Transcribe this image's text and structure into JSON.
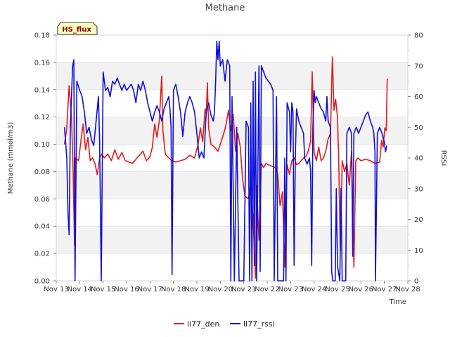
{
  "chart_data": {
    "type": "line",
    "title": "Methane",
    "badge": "HS_flux",
    "xlabel": "Time",
    "ylabel": "Methane (mmol/m3)",
    "y2label": "RSSI",
    "xlim": [
      13,
      28
    ],
    "ylim": [
      0,
      0.18
    ],
    "y2lim": [
      0,
      80
    ],
    "x_ticks": [
      13,
      14,
      15,
      16,
      17,
      18,
      19,
      20,
      21,
      22,
      23,
      24,
      25,
      26,
      27,
      28
    ],
    "x_tick_labels": [
      "Nov 13",
      "Nov 14",
      "Nov 15",
      "Nov 16",
      "Nov 17",
      "Nov 18",
      "Nov 19",
      "Nov 20",
      "Nov 21",
      "Nov 22",
      "Nov 23",
      "Nov 24",
      "Nov 25",
      "Nov 26",
      "Nov 27",
      "Nov 28"
    ],
    "y_ticks": [
      0.0,
      0.02,
      0.04,
      0.06,
      0.08,
      0.1,
      0.12,
      0.14,
      0.16,
      0.18
    ],
    "y_tick_labels": [
      "0.00",
      "0.02",
      "0.04",
      "0.06",
      "0.08",
      "0.10",
      "0.12",
      "0.14",
      "0.16",
      "0.18"
    ],
    "y2_ticks": [
      0,
      10,
      20,
      30,
      40,
      50,
      60,
      70,
      80
    ],
    "y2_tick_labels": [
      "0",
      "10",
      "20",
      "30",
      "40",
      "50",
      "60",
      "70",
      "80"
    ],
    "grid": true,
    "legend_position": "bottom-center",
    "series": [
      {
        "name": "li77_den",
        "axis": "left",
        "color": "#e41a1c",
        "points": [
          [
            13.35,
            0.1
          ],
          [
            13.45,
            0.112
          ],
          [
            13.55,
            0.143
          ],
          [
            13.65,
            0.12
          ],
          [
            13.72,
            0.08
          ],
          [
            13.78,
            0.026
          ],
          [
            13.82,
            0.09
          ],
          [
            13.95,
            0.088
          ],
          [
            14.05,
            0.102
          ],
          [
            14.15,
            0.115
          ],
          [
            14.25,
            0.096
          ],
          [
            14.35,
            0.105
          ],
          [
            14.45,
            0.088
          ],
          [
            14.55,
            0.09
          ],
          [
            14.65,
            0.086
          ],
          [
            14.75,
            0.078
          ],
          [
            14.85,
            0.09
          ],
          [
            14.95,
            0.093
          ],
          [
            15.05,
            0.09
          ],
          [
            15.2,
            0.093
          ],
          [
            15.35,
            0.088
          ],
          [
            15.5,
            0.096
          ],
          [
            15.65,
            0.089
          ],
          [
            15.8,
            0.094
          ],
          [
            15.95,
            0.088
          ],
          [
            16.1,
            0.087
          ],
          [
            16.25,
            0.086
          ],
          [
            16.4,
            0.089
          ],
          [
            16.55,
            0.092
          ],
          [
            16.7,
            0.095
          ],
          [
            16.85,
            0.088
          ],
          [
            17.0,
            0.091
          ],
          [
            17.1,
            0.098
          ],
          [
            17.2,
            0.115
          ],
          [
            17.3,
            0.105
          ],
          [
            17.4,
            0.118
          ],
          [
            17.5,
            0.15
          ],
          [
            17.55,
            0.11
          ],
          [
            17.65,
            0.093
          ],
          [
            17.8,
            0.09
          ],
          [
            17.95,
            0.088
          ],
          [
            18.1,
            0.087
          ],
          [
            18.3,
            0.088
          ],
          [
            18.5,
            0.089
          ],
          [
            18.7,
            0.092
          ],
          [
            18.9,
            0.09
          ],
          [
            19.05,
            0.1
          ],
          [
            19.15,
            0.112
          ],
          [
            19.25,
            0.102
          ],
          [
            19.35,
            0.126
          ],
          [
            19.4,
            0.122
          ],
          [
            19.45,
            0.145
          ],
          [
            19.5,
            0.112
          ],
          [
            19.6,
            0.1
          ],
          [
            19.75,
            0.098
          ],
          [
            19.9,
            0.095
          ],
          [
            20.0,
            0.1
          ],
          [
            20.15,
            0.108
          ],
          [
            20.25,
            0.115
          ],
          [
            20.35,
            0.125
          ],
          [
            20.45,
            0.11
          ],
          [
            20.55,
            0.122
          ],
          [
            20.65,
            0.095
          ],
          [
            20.75,
            0.108
          ],
          [
            20.85,
            0.098
          ],
          [
            20.95,
            0.075
          ],
          [
            21.05,
            0.062
          ],
          [
            21.2,
            0.06
          ],
          [
            21.3,
            0.072
          ],
          [
            21.4,
            0.045
          ],
          [
            21.5,
            0.002
          ],
          [
            21.55,
            0.07
          ],
          [
            21.65,
            0.03
          ],
          [
            21.75,
            0.086
          ],
          [
            21.85,
            0.083
          ],
          [
            21.95,
            0.086
          ],
          [
            22.05,
            0.085
          ],
          [
            22.2,
            0.084
          ],
          [
            22.35,
            0.083
          ],
          [
            22.45,
            0.078
          ],
          [
            22.55,
            0.055
          ],
          [
            22.65,
            0.065
          ],
          [
            22.75,
            0.01
          ],
          [
            22.85,
            0.085
          ],
          [
            22.95,
            0.078
          ],
          [
            23.05,
            0.088
          ],
          [
            23.15,
            0.09
          ],
          [
            23.25,
            0.085
          ],
          [
            23.35,
            0.086
          ],
          [
            23.45,
            0.088
          ],
          [
            23.55,
            0.09
          ],
          [
            23.65,
            0.091
          ],
          [
            23.75,
            0.095
          ],
          [
            23.85,
            0.102
          ],
          [
            23.92,
            0.153
          ],
          [
            24.0,
            0.094
          ],
          [
            24.1,
            0.088
          ],
          [
            24.2,
            0.098
          ],
          [
            24.3,
            0.088
          ],
          [
            24.4,
            0.09
          ],
          [
            24.5,
            0.095
          ],
          [
            24.6,
            0.104
          ],
          [
            24.7,
            0.108
          ],
          [
            24.78,
            0.164
          ],
          [
            24.85,
            0.125
          ],
          [
            24.92,
            0.133
          ],
          [
            25.0,
            0.12
          ],
          [
            25.05,
            0.089
          ],
          [
            25.12,
            0.022
          ],
          [
            25.2,
            0.088
          ],
          [
            25.3,
            0.08
          ],
          [
            25.4,
            0.086
          ],
          [
            25.5,
            0.07
          ],
          [
            25.6,
            0.095
          ],
          [
            25.7,
            0.01
          ],
          [
            25.78,
            0.088
          ],
          [
            25.88,
            0.09
          ],
          [
            26.0,
            0.088
          ],
          [
            26.2,
            0.089
          ],
          [
            26.4,
            0.088
          ],
          [
            26.6,
            0.086
          ],
          [
            26.8,
            0.087
          ],
          [
            26.88,
            0.103
          ],
          [
            26.95,
            0.098
          ],
          [
            27.02,
            0.112
          ],
          [
            27.08,
            0.11
          ],
          [
            27.12,
            0.148
          ]
        ]
      },
      {
        "name": "li77_rssi",
        "axis": "right",
        "color": "#1010d8",
        "points": [
          [
            13.35,
            50
          ],
          [
            13.45,
            40
          ],
          [
            13.5,
            22
          ],
          [
            13.55,
            15
          ],
          [
            13.6,
            50
          ],
          [
            13.65,
            60
          ],
          [
            13.7,
            70
          ],
          [
            13.75,
            72
          ],
          [
            13.8,
            0
          ],
          [
            13.88,
            65
          ],
          [
            14.0,
            62
          ],
          [
            14.1,
            60
          ],
          [
            14.2,
            55
          ],
          [
            14.3,
            48
          ],
          [
            14.4,
            50
          ],
          [
            14.5,
            46
          ],
          [
            14.6,
            44
          ],
          [
            14.7,
            52
          ],
          [
            14.8,
            60
          ],
          [
            14.85,
            45
          ],
          [
            14.92,
            0
          ],
          [
            15.0,
            68
          ],
          [
            15.1,
            62
          ],
          [
            15.2,
            63
          ],
          [
            15.3,
            60
          ],
          [
            15.4,
            65
          ],
          [
            15.5,
            64
          ],
          [
            15.6,
            66
          ],
          [
            15.7,
            64
          ],
          [
            15.8,
            62
          ],
          [
            15.9,
            64
          ],
          [
            16.0,
            62
          ],
          [
            16.1,
            63
          ],
          [
            16.2,
            64
          ],
          [
            16.3,
            62
          ],
          [
            16.4,
            58
          ],
          [
            16.5,
            64
          ],
          [
            16.6,
            62
          ],
          [
            16.7,
            65
          ],
          [
            16.8,
            62
          ],
          [
            16.9,
            58
          ],
          [
            17.0,
            55
          ],
          [
            17.1,
            52
          ],
          [
            17.2,
            55
          ],
          [
            17.3,
            57
          ],
          [
            17.4,
            55
          ],
          [
            17.5,
            52
          ],
          [
            17.6,
            56
          ],
          [
            17.7,
            58
          ],
          [
            17.8,
            60
          ],
          [
            17.85,
            56
          ],
          [
            17.9,
            50
          ],
          [
            17.94,
            2
          ],
          [
            18.0,
            62
          ],
          [
            18.1,
            64
          ],
          [
            18.2,
            60
          ],
          [
            18.3,
            55
          ],
          [
            18.4,
            47
          ],
          [
            18.5,
            55
          ],
          [
            18.6,
            58
          ],
          [
            18.7,
            60
          ],
          [
            18.8,
            58
          ],
          [
            18.9,
            55
          ],
          [
            19.0,
            48
          ],
          [
            19.1,
            40
          ],
          [
            19.2,
            42
          ],
          [
            19.3,
            40
          ],
          [
            19.4,
            55
          ],
          [
            19.5,
            58
          ],
          [
            19.6,
            54
          ],
          [
            19.7,
            52
          ],
          [
            19.75,
            55
          ],
          [
            19.8,
            65
          ],
          [
            19.85,
            78
          ],
          [
            19.9,
            72
          ],
          [
            19.95,
            78
          ],
          [
            20.0,
            70
          ],
          [
            20.1,
            72
          ],
          [
            20.2,
            65
          ],
          [
            20.3,
            72
          ],
          [
            20.4,
            70
          ],
          [
            20.45,
            0
          ],
          [
            20.5,
            60
          ],
          [
            20.6,
            0
          ],
          [
            20.7,
            50
          ],
          [
            20.8,
            0
          ],
          [
            20.9,
            0
          ],
          [
            21.0,
            0
          ],
          [
            21.1,
            52
          ],
          [
            21.2,
            50
          ],
          [
            21.25,
            0
          ],
          [
            21.3,
            58
          ],
          [
            21.35,
            0
          ],
          [
            21.4,
            65
          ],
          [
            21.45,
            5
          ],
          [
            21.5,
            68
          ],
          [
            21.55,
            0
          ],
          [
            21.65,
            70
          ],
          [
            21.7,
            3
          ],
          [
            21.75,
            70
          ],
          [
            21.85,
            68
          ],
          [
            21.95,
            66
          ],
          [
            22.05,
            65
          ],
          [
            22.15,
            64
          ],
          [
            22.25,
            62
          ],
          [
            22.3,
            0
          ],
          [
            22.4,
            60
          ],
          [
            22.45,
            0
          ],
          [
            22.5,
            0
          ],
          [
            22.6,
            0
          ],
          [
            22.7,
            0
          ],
          [
            22.75,
            40
          ],
          [
            22.8,
            0
          ],
          [
            22.85,
            58
          ],
          [
            22.95,
            55
          ],
          [
            23.0,
            42
          ],
          [
            23.05,
            58
          ],
          [
            23.1,
            55
          ],
          [
            23.15,
            5
          ],
          [
            23.2,
            40
          ],
          [
            23.25,
            56
          ],
          [
            23.35,
            52
          ],
          [
            23.45,
            50
          ],
          [
            23.55,
            48
          ],
          [
            23.6,
            40
          ],
          [
            23.7,
            38
          ],
          [
            23.8,
            40
          ],
          [
            23.85,
            36
          ],
          [
            23.9,
            5
          ],
          [
            23.95,
            50
          ],
          [
            24.0,
            62
          ],
          [
            24.05,
            58
          ],
          [
            24.1,
            60
          ],
          [
            24.2,
            58
          ],
          [
            24.3,
            56
          ],
          [
            24.4,
            55
          ],
          [
            24.5,
            52
          ],
          [
            24.55,
            60
          ],
          [
            24.6,
            52
          ],
          [
            24.7,
            50
          ],
          [
            24.75,
            3
          ],
          [
            24.8,
            0
          ],
          [
            24.9,
            0
          ],
          [
            24.95,
            30
          ],
          [
            25.0,
            5
          ],
          [
            25.1,
            0
          ],
          [
            25.15,
            30
          ],
          [
            25.2,
            0
          ],
          [
            25.3,
            0
          ],
          [
            25.35,
            0
          ],
          [
            25.4,
            48
          ],
          [
            25.5,
            50
          ],
          [
            25.6,
            48
          ],
          [
            25.65,
            8
          ],
          [
            25.7,
            48
          ],
          [
            25.8,
            50
          ],
          [
            25.9,
            48
          ],
          [
            26.0,
            50
          ],
          [
            26.1,
            52
          ],
          [
            26.2,
            54
          ],
          [
            26.3,
            55
          ],
          [
            26.4,
            52
          ],
          [
            26.5,
            50
          ],
          [
            26.55,
            48
          ],
          [
            26.6,
            42
          ],
          [
            26.62,
            0
          ],
          [
            26.7,
            48
          ],
          [
            26.8,
            50
          ],
          [
            26.9,
            48
          ],
          [
            27.0,
            45
          ],
          [
            27.05,
            42
          ],
          [
            27.1,
            44
          ]
        ]
      }
    ]
  }
}
